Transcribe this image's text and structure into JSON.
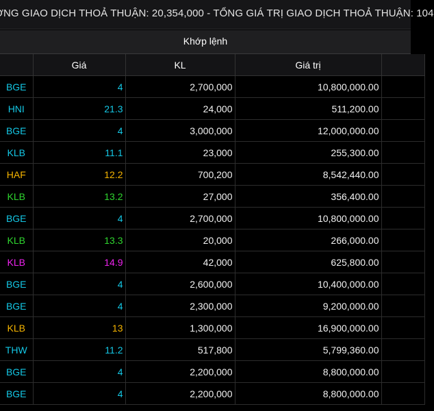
{
  "ticker": {
    "text": "ỢNG GIAO DỊCH THOẢ THUẬN: 20,354,000  -  TỔNG GIÁ TRỊ GIAO DỊCH THOẢ THUẬN: 104"
  },
  "section": {
    "title": "Khớp lệnh"
  },
  "table": {
    "headers": [
      "",
      "Giá",
      "KL",
      "Giá trị",
      ""
    ],
    "rows": [
      {
        "symbol": "BGE",
        "price": "4",
        "volume": "2,700,000",
        "value": "10,800,000.00",
        "color": "cyan"
      },
      {
        "symbol": "HNI",
        "price": "21.3",
        "volume": "24,000",
        "value": "511,200.00",
        "color": "cyan"
      },
      {
        "symbol": "BGE",
        "price": "4",
        "volume": "3,000,000",
        "value": "12,000,000.00",
        "color": "cyan"
      },
      {
        "symbol": "KLB",
        "price": "11.1",
        "volume": "23,000",
        "value": "255,300.00",
        "color": "cyan"
      },
      {
        "symbol": "HAF",
        "price": "12.2",
        "volume": "700,200",
        "value": "8,542,440.00",
        "color": "yellow"
      },
      {
        "symbol": "KLB",
        "price": "13.2",
        "volume": "27,000",
        "value": "356,400.00",
        "color": "green"
      },
      {
        "symbol": "BGE",
        "price": "4",
        "volume": "2,700,000",
        "value": "10,800,000.00",
        "color": "cyan"
      },
      {
        "symbol": "KLB",
        "price": "13.3",
        "volume": "20,000",
        "value": "266,000.00",
        "color": "green"
      },
      {
        "symbol": "KLB",
        "price": "14.9",
        "volume": "42,000",
        "value": "625,800.00",
        "color": "magenta"
      },
      {
        "symbol": "BGE",
        "price": "4",
        "volume": "2,600,000",
        "value": "10,400,000.00",
        "color": "cyan"
      },
      {
        "symbol": "BGE",
        "price": "4",
        "volume": "2,300,000",
        "value": "9,200,000.00",
        "color": "cyan"
      },
      {
        "symbol": "KLB",
        "price": "13",
        "volume": "1,300,000",
        "value": "16,900,000.00",
        "color": "yellow"
      },
      {
        "symbol": "THW",
        "price": "11.2",
        "volume": "517,800",
        "value": "5,799,360.00",
        "color": "cyan"
      },
      {
        "symbol": "BGE",
        "price": "4",
        "volume": "2,200,000",
        "value": "8,800,000.00",
        "color": "cyan"
      },
      {
        "symbol": "BGE",
        "price": "4",
        "volume": "2,200,000",
        "value": "8,800,000.00",
        "color": "cyan"
      }
    ]
  },
  "colors": {
    "cyan": "#14c8e6",
    "yellow": "#f7b500",
    "green": "#2fd62f",
    "magenta": "#ee22ee"
  }
}
